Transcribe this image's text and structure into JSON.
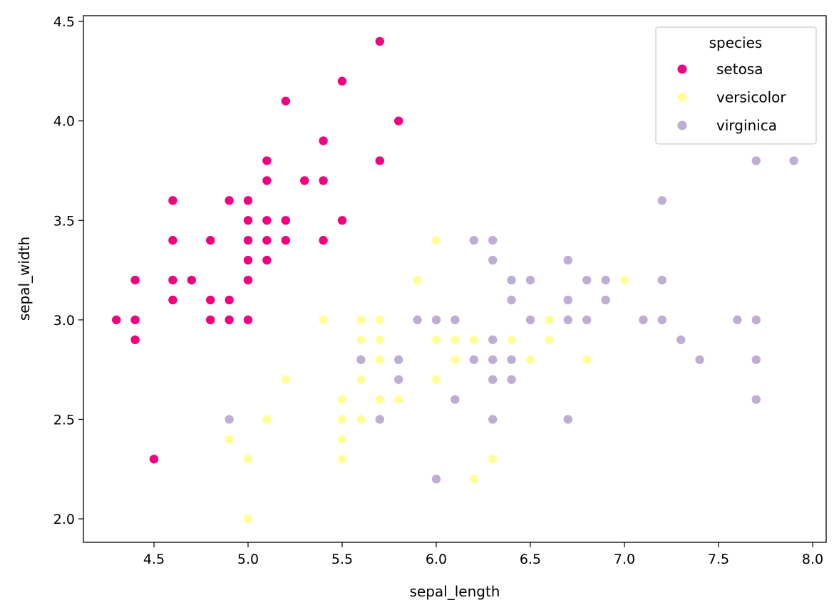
{
  "chart_data": {
    "type": "scatter",
    "title": "",
    "xlabel": "sepal_length",
    "ylabel": "sepal_width",
    "xlim": [
      4.125,
      8.072
    ],
    "ylim": [
      1.882,
      4.529
    ],
    "xticks": [
      "4.5",
      "5.0",
      "5.5",
      "6.0",
      "6.5",
      "7.0",
      "7.5",
      "8.0"
    ],
    "yticks": [
      "2.0",
      "2.5",
      "3.0",
      "3.5",
      "4.0",
      "4.5"
    ],
    "grid": false,
    "legend": {
      "title": "species",
      "placement": "top-right"
    },
    "series": [
      {
        "name": "setosa",
        "color": "#f0027f",
        "points": [
          [
            5.1,
            3.5
          ],
          [
            4.9,
            3.0
          ],
          [
            4.7,
            3.2
          ],
          [
            4.6,
            3.1
          ],
          [
            5.0,
            3.6
          ],
          [
            5.4,
            3.9
          ],
          [
            4.6,
            3.4
          ],
          [
            5.0,
            3.4
          ],
          [
            4.4,
            2.9
          ],
          [
            4.9,
            3.1
          ],
          [
            5.4,
            3.7
          ],
          [
            4.8,
            3.4
          ],
          [
            4.8,
            3.0
          ],
          [
            4.3,
            3.0
          ],
          [
            5.8,
            4.0
          ],
          [
            5.7,
            4.4
          ],
          [
            5.4,
            3.9
          ],
          [
            5.1,
            3.5
          ],
          [
            5.7,
            3.8
          ],
          [
            5.1,
            3.8
          ],
          [
            5.4,
            3.4
          ],
          [
            5.1,
            3.7
          ],
          [
            4.6,
            3.6
          ],
          [
            5.1,
            3.3
          ],
          [
            4.8,
            3.4
          ],
          [
            5.0,
            3.0
          ],
          [
            5.0,
            3.4
          ],
          [
            5.2,
            3.5
          ],
          [
            5.2,
            3.4
          ],
          [
            4.7,
            3.2
          ],
          [
            4.8,
            3.1
          ],
          [
            5.4,
            3.4
          ],
          [
            5.2,
            4.1
          ],
          [
            5.5,
            4.2
          ],
          [
            4.9,
            3.1
          ],
          [
            5.0,
            3.2
          ],
          [
            5.5,
            3.5
          ],
          [
            4.9,
            3.6
          ],
          [
            4.4,
            3.0
          ],
          [
            5.1,
            3.4
          ],
          [
            5.0,
            3.5
          ],
          [
            4.5,
            2.3
          ],
          [
            4.4,
            3.2
          ],
          [
            5.0,
            3.5
          ],
          [
            5.1,
            3.8
          ],
          [
            4.8,
            3.0
          ],
          [
            5.1,
            3.8
          ],
          [
            4.6,
            3.2
          ],
          [
            5.3,
            3.7
          ],
          [
            5.0,
            3.3
          ]
        ]
      },
      {
        "name": "versicolor",
        "color": "#ffff99",
        "points": [
          [
            7.0,
            3.2
          ],
          [
            6.4,
            3.2
          ],
          [
            6.9,
            3.1
          ],
          [
            5.5,
            2.3
          ],
          [
            6.5,
            2.8
          ],
          [
            5.7,
            2.8
          ],
          [
            6.3,
            3.3
          ],
          [
            4.9,
            2.4
          ],
          [
            6.6,
            2.9
          ],
          [
            5.2,
            2.7
          ],
          [
            5.0,
            2.0
          ],
          [
            5.9,
            3.0
          ],
          [
            6.0,
            2.2
          ],
          [
            6.1,
            2.9
          ],
          [
            5.6,
            2.9
          ],
          [
            6.7,
            3.1
          ],
          [
            5.6,
            3.0
          ],
          [
            5.8,
            2.7
          ],
          [
            6.2,
            2.2
          ],
          [
            5.6,
            2.5
          ],
          [
            5.9,
            3.2
          ],
          [
            6.1,
            2.8
          ],
          [
            6.3,
            2.5
          ],
          [
            6.1,
            2.8
          ],
          [
            6.4,
            2.9
          ],
          [
            6.6,
            3.0
          ],
          [
            6.8,
            2.8
          ],
          [
            6.7,
            3.0
          ],
          [
            6.0,
            2.9
          ],
          [
            5.7,
            2.6
          ],
          [
            5.5,
            2.4
          ],
          [
            5.5,
            2.4
          ],
          [
            5.8,
            2.7
          ],
          [
            6.0,
            2.7
          ],
          [
            5.4,
            3.0
          ],
          [
            6.0,
            3.4
          ],
          [
            6.7,
            3.1
          ],
          [
            6.3,
            2.3
          ],
          [
            5.6,
            3.0
          ],
          [
            5.5,
            2.5
          ],
          [
            5.5,
            2.6
          ],
          [
            6.1,
            3.0
          ],
          [
            5.8,
            2.6
          ],
          [
            5.0,
            2.3
          ],
          [
            5.6,
            2.7
          ],
          [
            5.7,
            3.0
          ],
          [
            5.7,
            2.9
          ],
          [
            6.2,
            2.9
          ],
          [
            5.1,
            2.5
          ],
          [
            5.7,
            2.8
          ]
        ]
      },
      {
        "name": "virginica",
        "color": "#beaed4",
        "points": [
          [
            6.3,
            3.3
          ],
          [
            5.8,
            2.7
          ],
          [
            7.1,
            3.0
          ],
          [
            6.3,
            2.9
          ],
          [
            6.5,
            3.0
          ],
          [
            7.6,
            3.0
          ],
          [
            4.9,
            2.5
          ],
          [
            7.3,
            2.9
          ],
          [
            6.7,
            2.5
          ],
          [
            7.2,
            3.6
          ],
          [
            6.5,
            3.2
          ],
          [
            6.4,
            2.7
          ],
          [
            6.8,
            3.0
          ],
          [
            5.7,
            2.5
          ],
          [
            5.8,
            2.8
          ],
          [
            6.4,
            3.2
          ],
          [
            6.5,
            3.0
          ],
          [
            7.7,
            3.8
          ],
          [
            7.7,
            2.6
          ],
          [
            6.0,
            2.2
          ],
          [
            6.9,
            3.2
          ],
          [
            5.6,
            2.8
          ],
          [
            7.7,
            2.8
          ],
          [
            6.3,
            2.7
          ],
          [
            6.7,
            3.3
          ],
          [
            7.2,
            3.2
          ],
          [
            6.2,
            2.8
          ],
          [
            6.1,
            3.0
          ],
          [
            6.4,
            2.8
          ],
          [
            7.2,
            3.0
          ],
          [
            7.4,
            2.8
          ],
          [
            7.9,
            3.8
          ],
          [
            6.4,
            2.8
          ],
          [
            6.3,
            2.8
          ],
          [
            6.1,
            2.6
          ],
          [
            7.7,
            3.0
          ],
          [
            6.3,
            3.4
          ],
          [
            6.4,
            3.1
          ],
          [
            6.0,
            3.0
          ],
          [
            6.9,
            3.1
          ],
          [
            6.7,
            3.1
          ],
          [
            6.9,
            3.1
          ],
          [
            5.8,
            2.7
          ],
          [
            6.8,
            3.2
          ],
          [
            6.7,
            3.3
          ],
          [
            6.7,
            3.0
          ],
          [
            6.3,
            2.5
          ],
          [
            6.5,
            3.0
          ],
          [
            6.2,
            3.4
          ],
          [
            5.9,
            3.0
          ]
        ]
      }
    ]
  }
}
